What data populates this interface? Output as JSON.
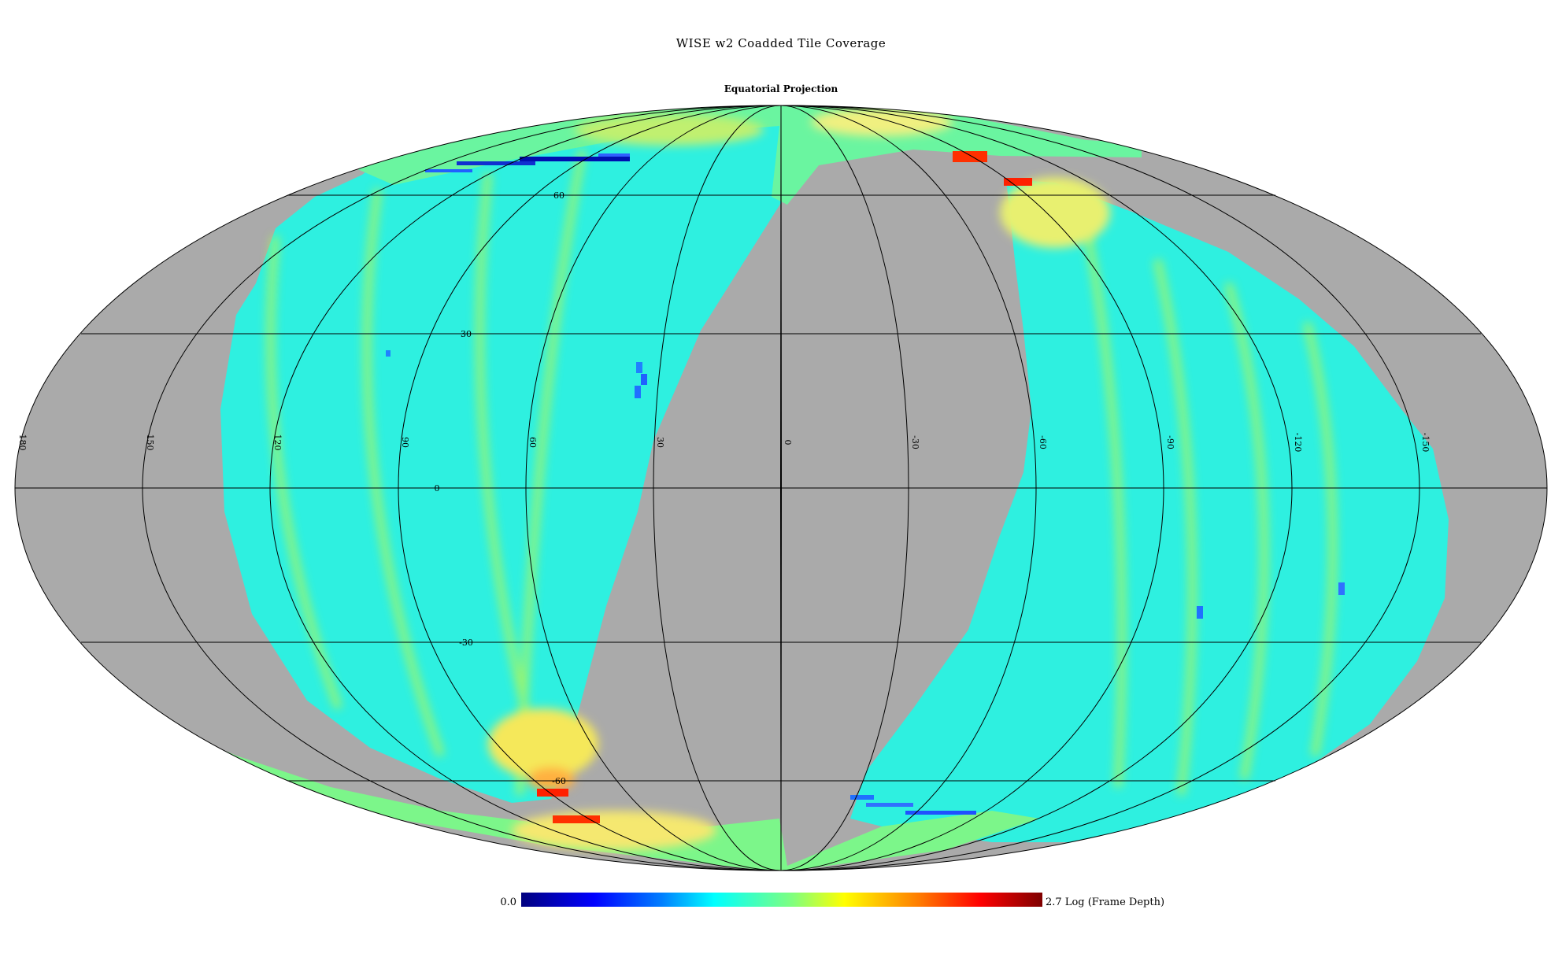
{
  "title": "WISE w2 Coadded Tile Coverage",
  "subtitle": "Equatorial Projection",
  "projection": "mollweide",
  "colors": {
    "background": "#ffffff",
    "no_coverage": "#aaaaaa",
    "graticule": "#000000"
  },
  "graticule": {
    "longitude_labels": [
      "180",
      "150",
      "120",
      "90",
      "60",
      "30",
      "0",
      "-30",
      "-60",
      "-90",
      "-120",
      "-150"
    ],
    "latitude_labels": [
      "60",
      "30",
      "0",
      "-30",
      "-60"
    ]
  },
  "colorbar": {
    "min_label": "0.0",
    "max_label": "2.7 Log (Frame Depth)",
    "min": 0.0,
    "max": 2.7,
    "colormap": "jet"
  }
}
